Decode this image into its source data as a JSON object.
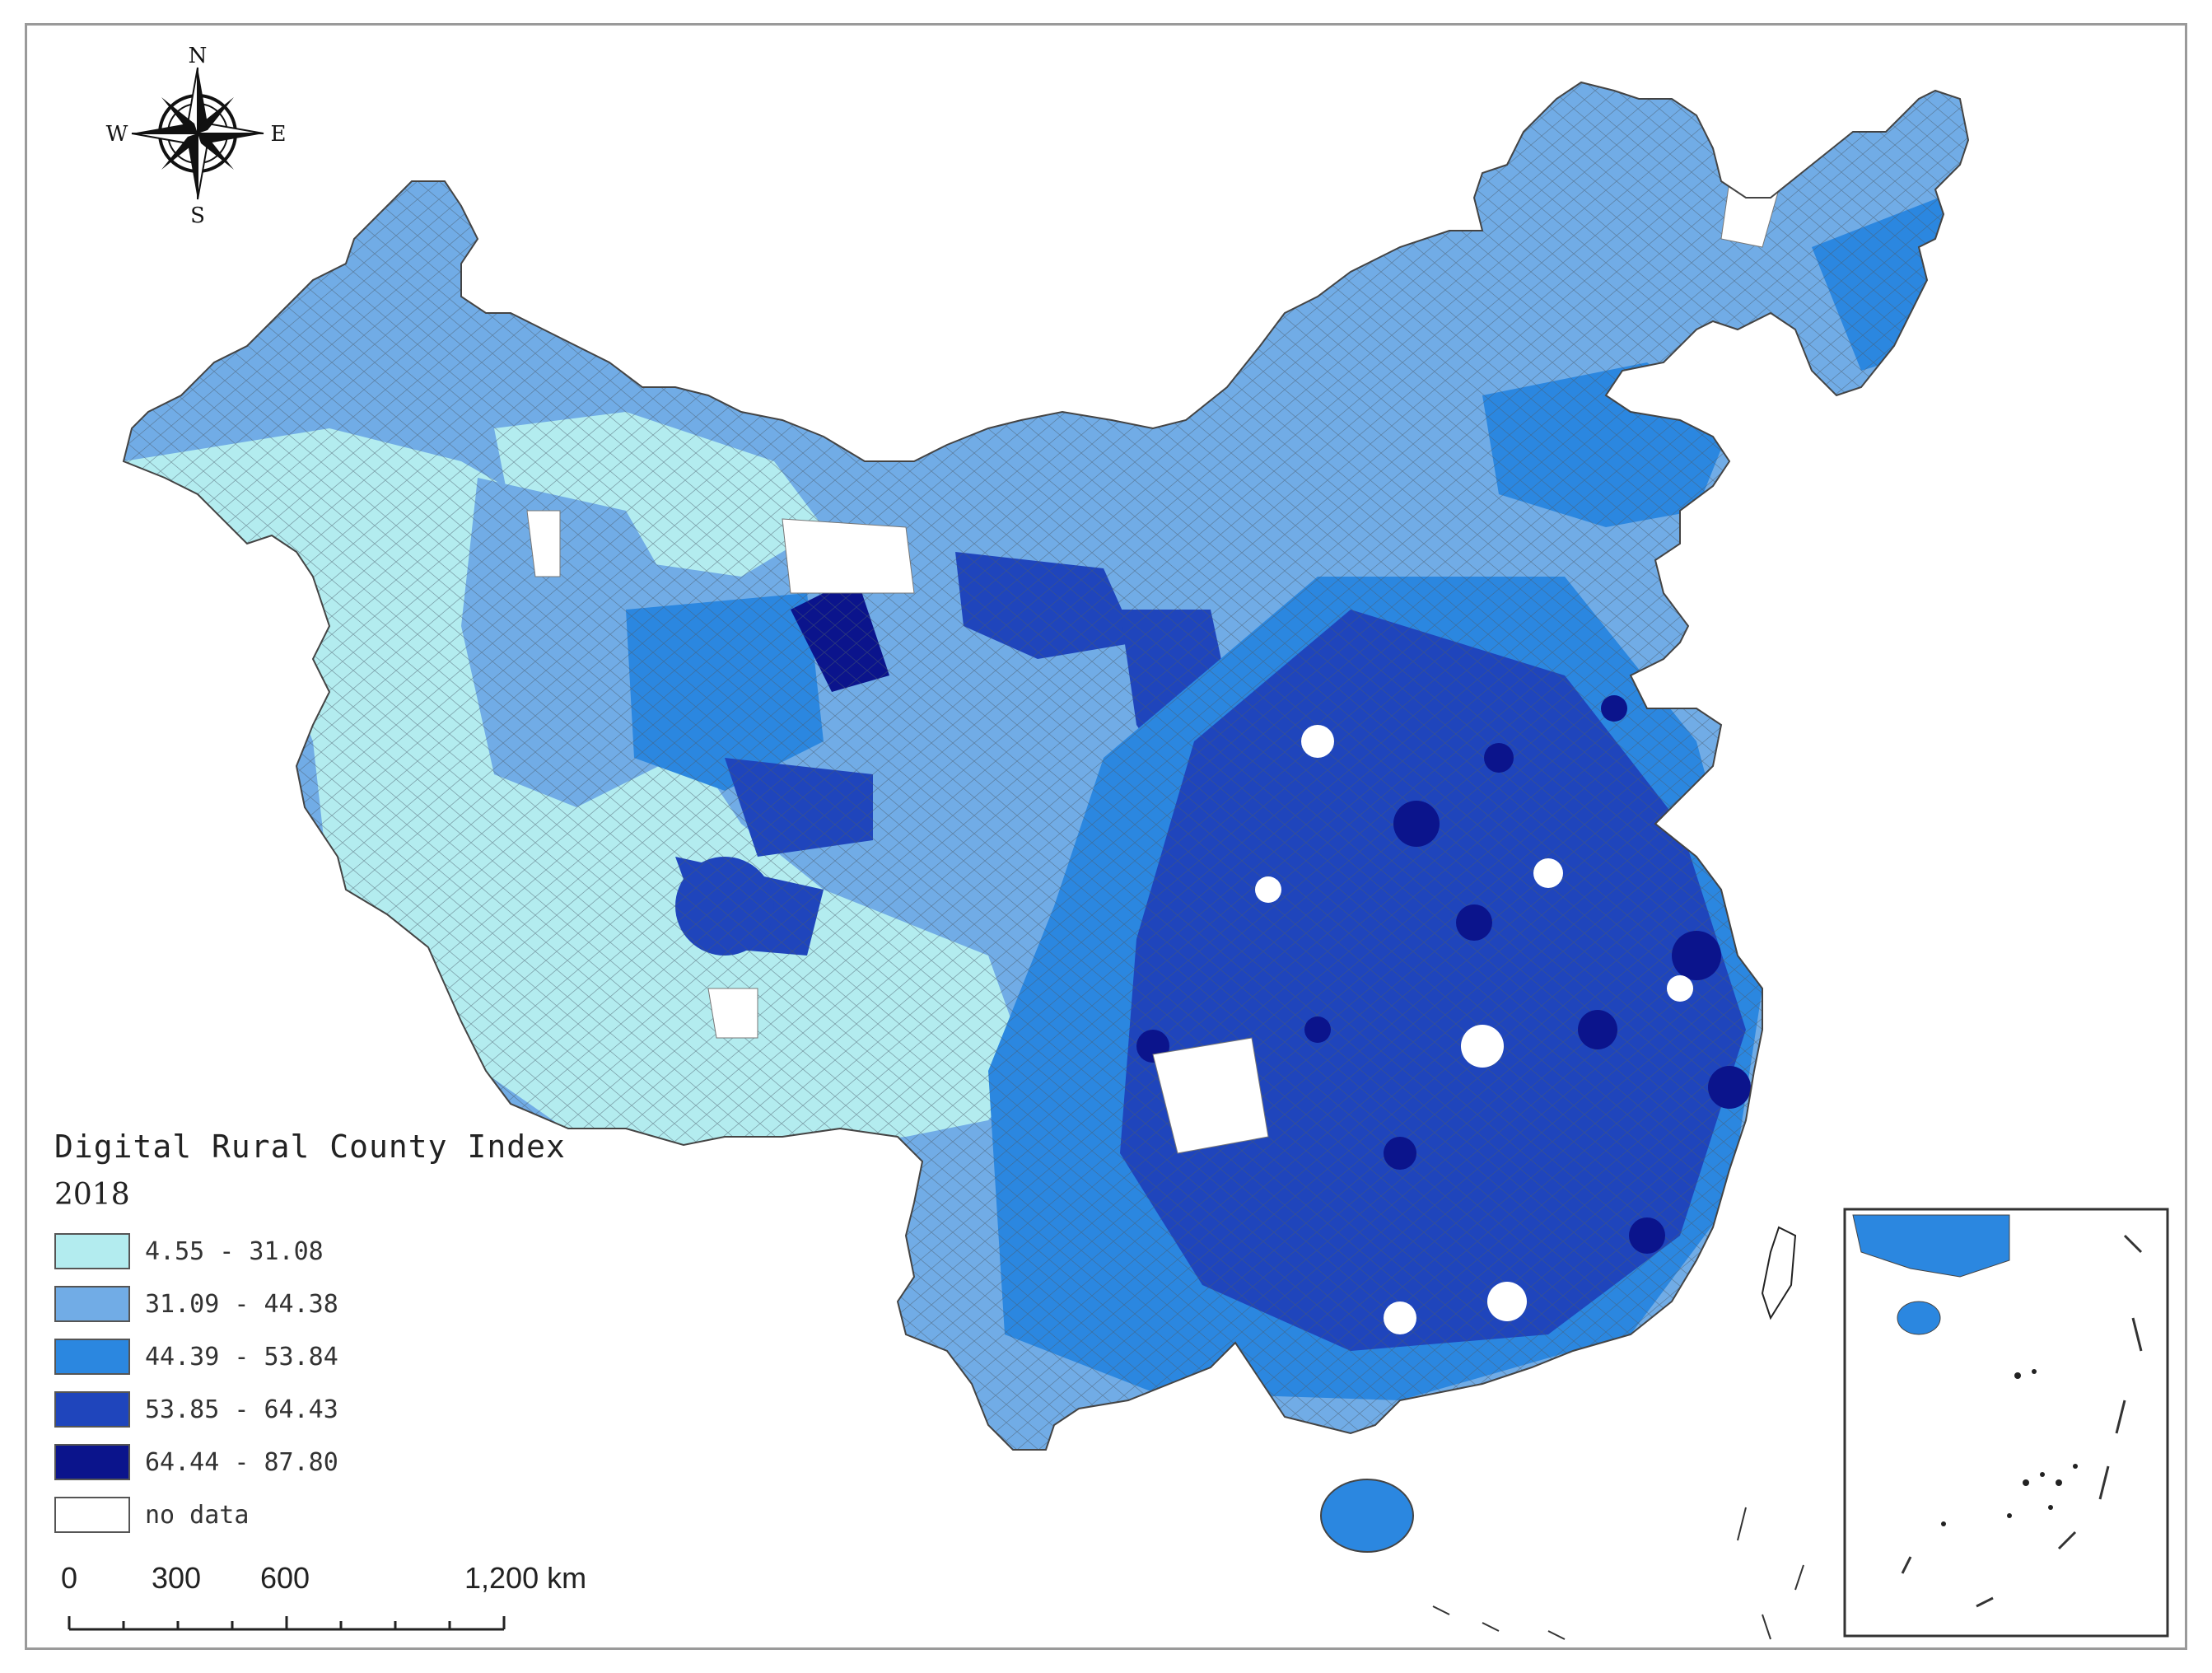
{
  "compass": {
    "north": "N",
    "south": "S",
    "east": "E",
    "west": "W"
  },
  "legend": {
    "title": "Digital Rural County Index",
    "year": "2018",
    "classes": [
      {
        "label": "4.55 - 31.08",
        "color": "#b3ecef"
      },
      {
        "label": "31.09 - 44.38",
        "color": "#71ace6"
      },
      {
        "label": "44.39 - 53.84",
        "color": "#2b87e0"
      },
      {
        "label": "53.85 - 64.43",
        "color": "#1f45bc"
      },
      {
        "label": "64.44 - 87.80",
        "color": "#0b148c"
      },
      {
        "label": "no data",
        "color": "#ffffff"
      }
    ]
  },
  "scale_bar": {
    "labels": [
      "0",
      "300",
      "600",
      "1,200 km"
    ]
  }
}
